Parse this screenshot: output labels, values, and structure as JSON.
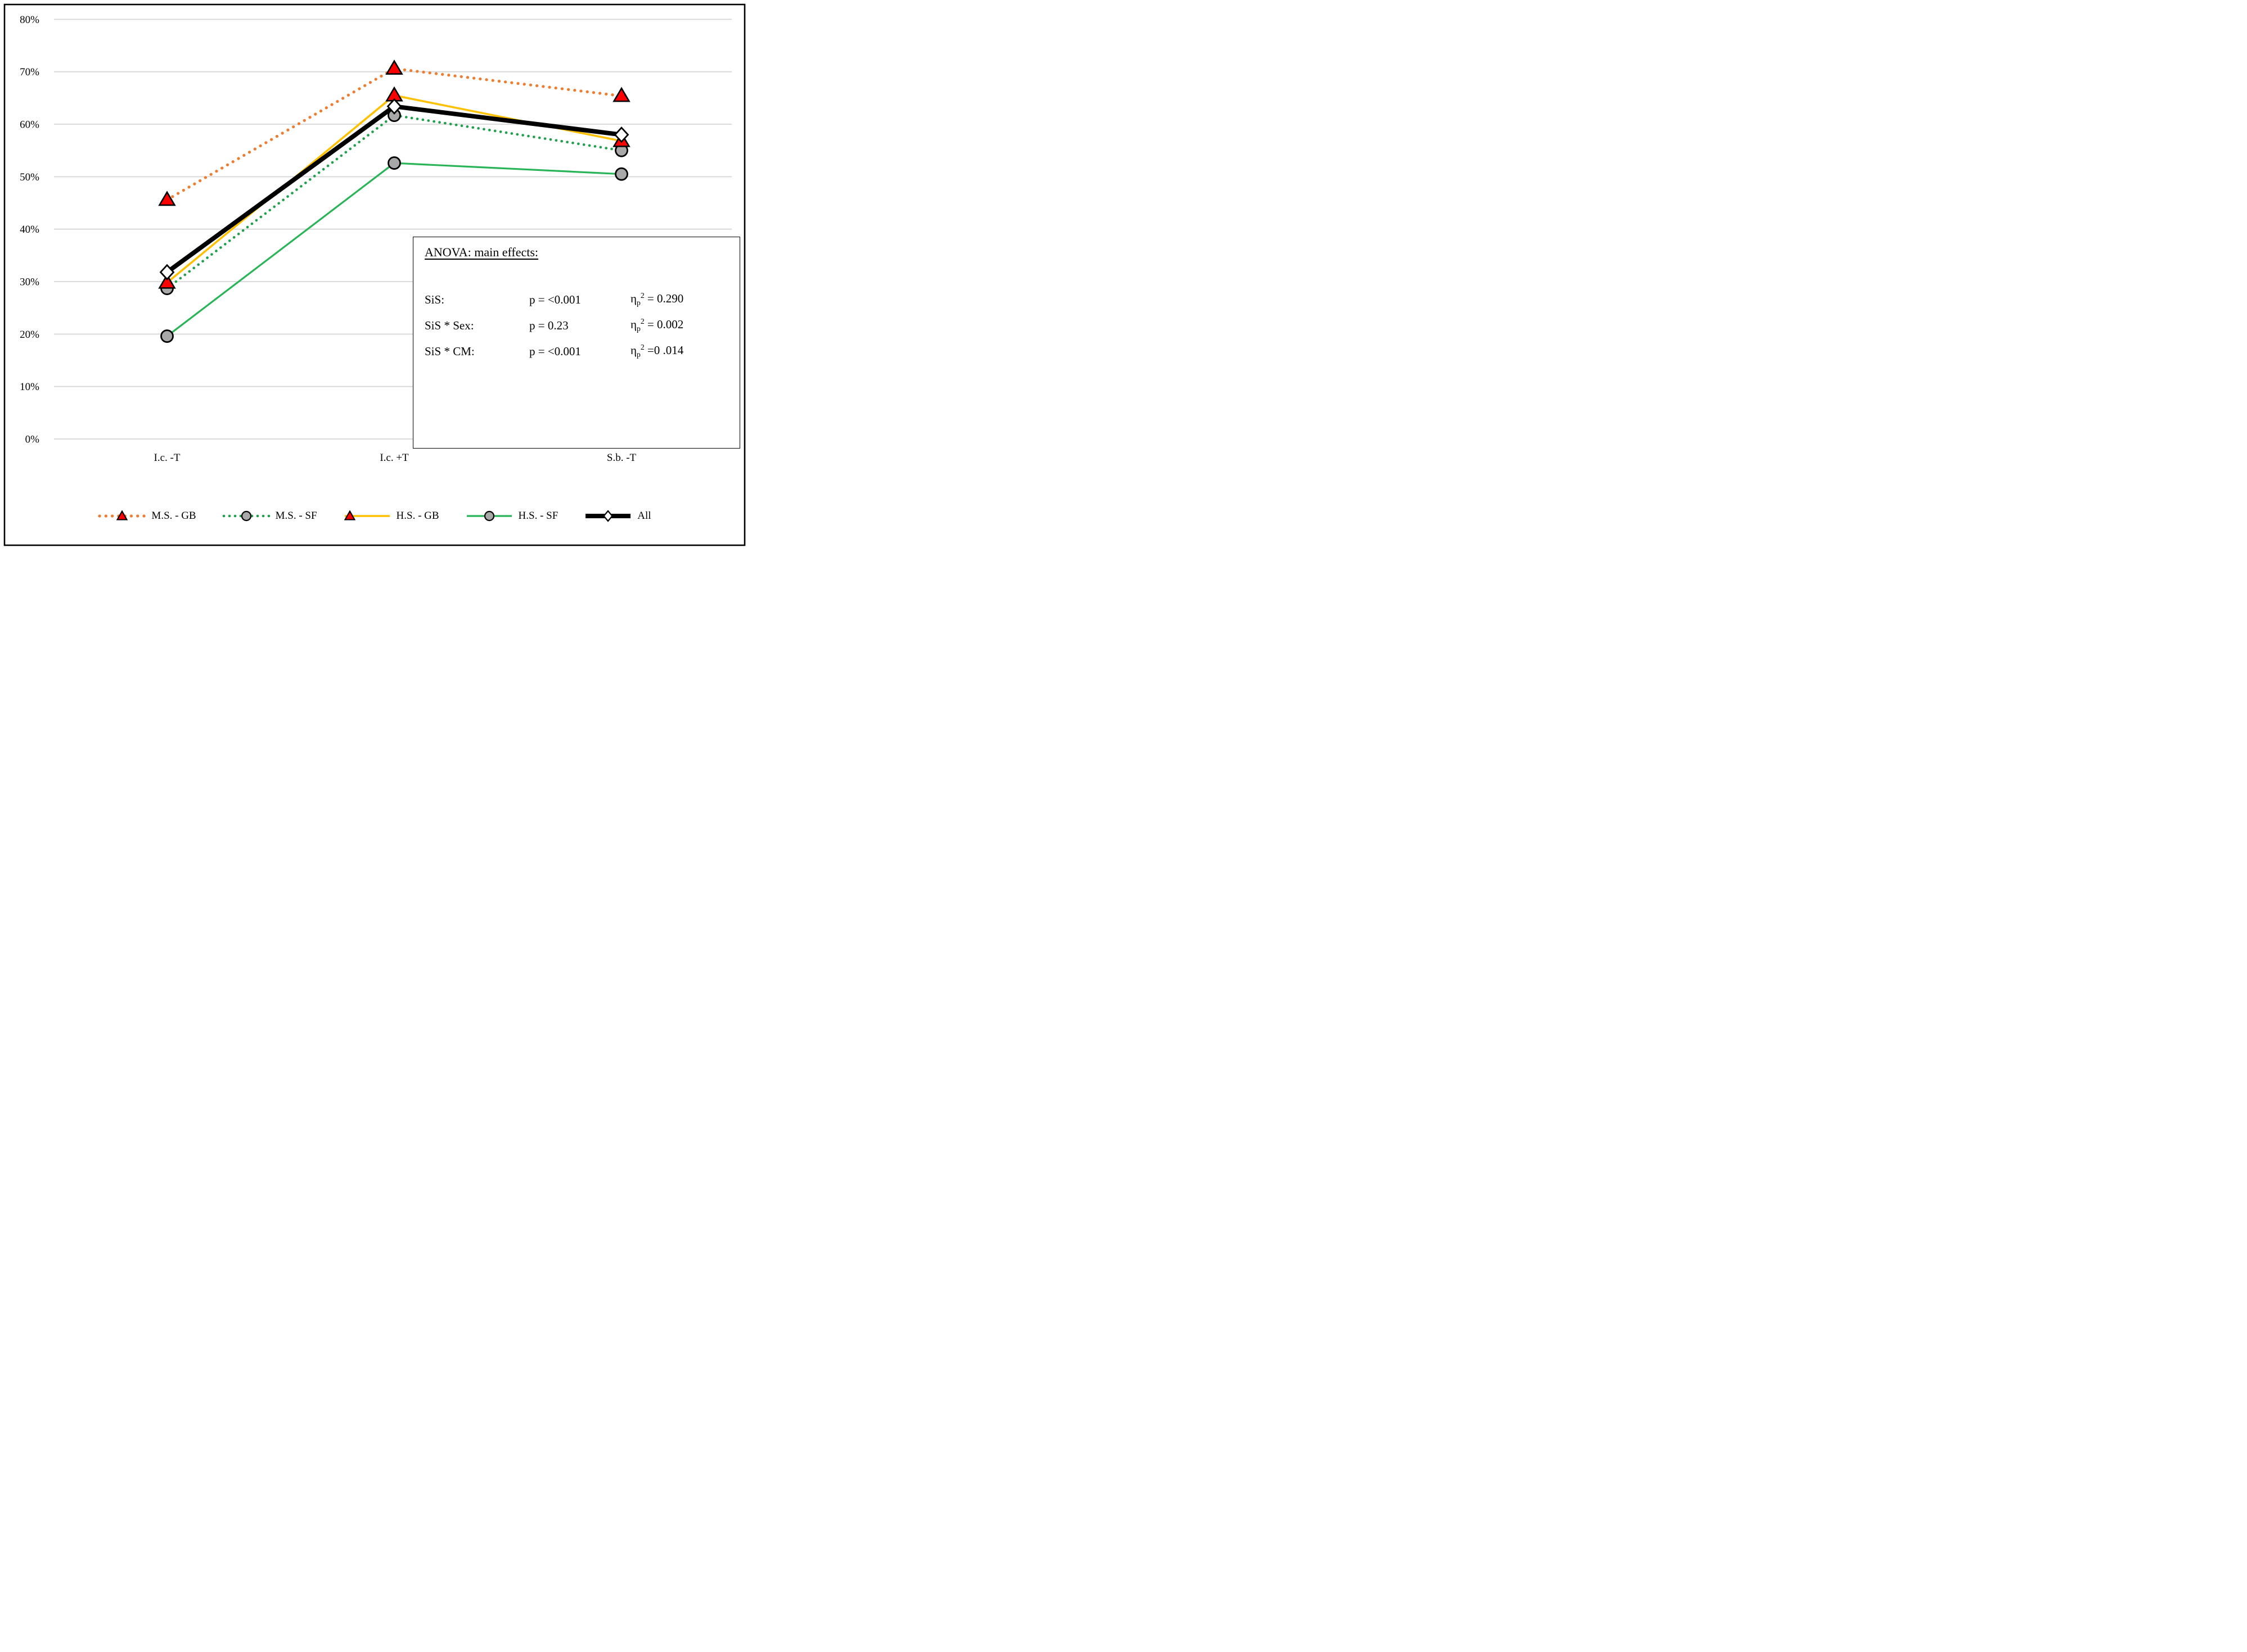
{
  "figure": {
    "background": "#FFFFFF",
    "border_color": "#000000",
    "gridline_color": "#D6D6D6"
  },
  "chart_data": {
    "type": "line",
    "title": "",
    "xlabel": "",
    "ylabel": "",
    "categories": [
      "I.c. -T",
      "I.c. +T",
      "S.b. -T"
    ],
    "series": [
      {
        "name": "M.S. - GB",
        "values": [
          45.6,
          70.6,
          65.4
        ],
        "line_color": "#ED7D31",
        "line_style": "dotted",
        "marker": "triangle",
        "marker_fill": "#FE0000",
        "marker_stroke": "#000000"
      },
      {
        "name": "M.S. - SF",
        "values": [
          28.7,
          61.7,
          55.0
        ],
        "line_color": "#1FA04C",
        "line_style": "dotted",
        "marker": "circle",
        "marker_fill": "#A8A8A8",
        "marker_stroke": "#000000"
      },
      {
        "name": "H.S. - GB",
        "values": [
          29.8,
          65.5,
          56.8
        ],
        "line_color": "#FFC000",
        "line_style": "solid",
        "marker": "triangle",
        "marker_fill": "#FE0000",
        "marker_stroke": "#000000"
      },
      {
        "name": "H.S. - SF",
        "values": [
          19.6,
          52.6,
          50.5
        ],
        "line_color": "#28B457",
        "line_style": "solid",
        "marker": "circle",
        "marker_fill": "#A8A8A8",
        "marker_stroke": "#000000"
      },
      {
        "name": "All",
        "values": [
          31.8,
          63.4,
          58.0
        ],
        "line_color": "#000000",
        "line_style": "solid-thick",
        "marker": "diamond",
        "marker_fill": "#FFFFFF",
        "marker_stroke": "#000000"
      }
    ],
    "ylim": [
      0,
      80
    ],
    "ytick_step": 10,
    "ytick_labels": [
      "0%",
      "10%",
      "20%",
      "30%",
      "40%",
      "50%",
      "60%",
      "70%",
      "80%"
    ],
    "grid": true,
    "legend_position": "bottom"
  },
  "anova": {
    "title": "ANOVA: main effects:",
    "rows": [
      {
        "label": "SiS:",
        "p": "p = <0.001",
        "eta_sym": "η",
        "eta_sub": "p",
        "eta_sup": "2",
        "eta_value": " = 0.290"
      },
      {
        "label": "SiS * Sex:",
        "p": "p = 0.23",
        "eta_sym": "η",
        "eta_sub": "p",
        "eta_sup": "2",
        "eta_value": " = 0.002"
      },
      {
        "label": "SiS * CM:",
        "p": "p = <0.001",
        "eta_sym": "η",
        "eta_sub": "p",
        "eta_sup": "2",
        "eta_value": " =0 .014"
      }
    ]
  }
}
